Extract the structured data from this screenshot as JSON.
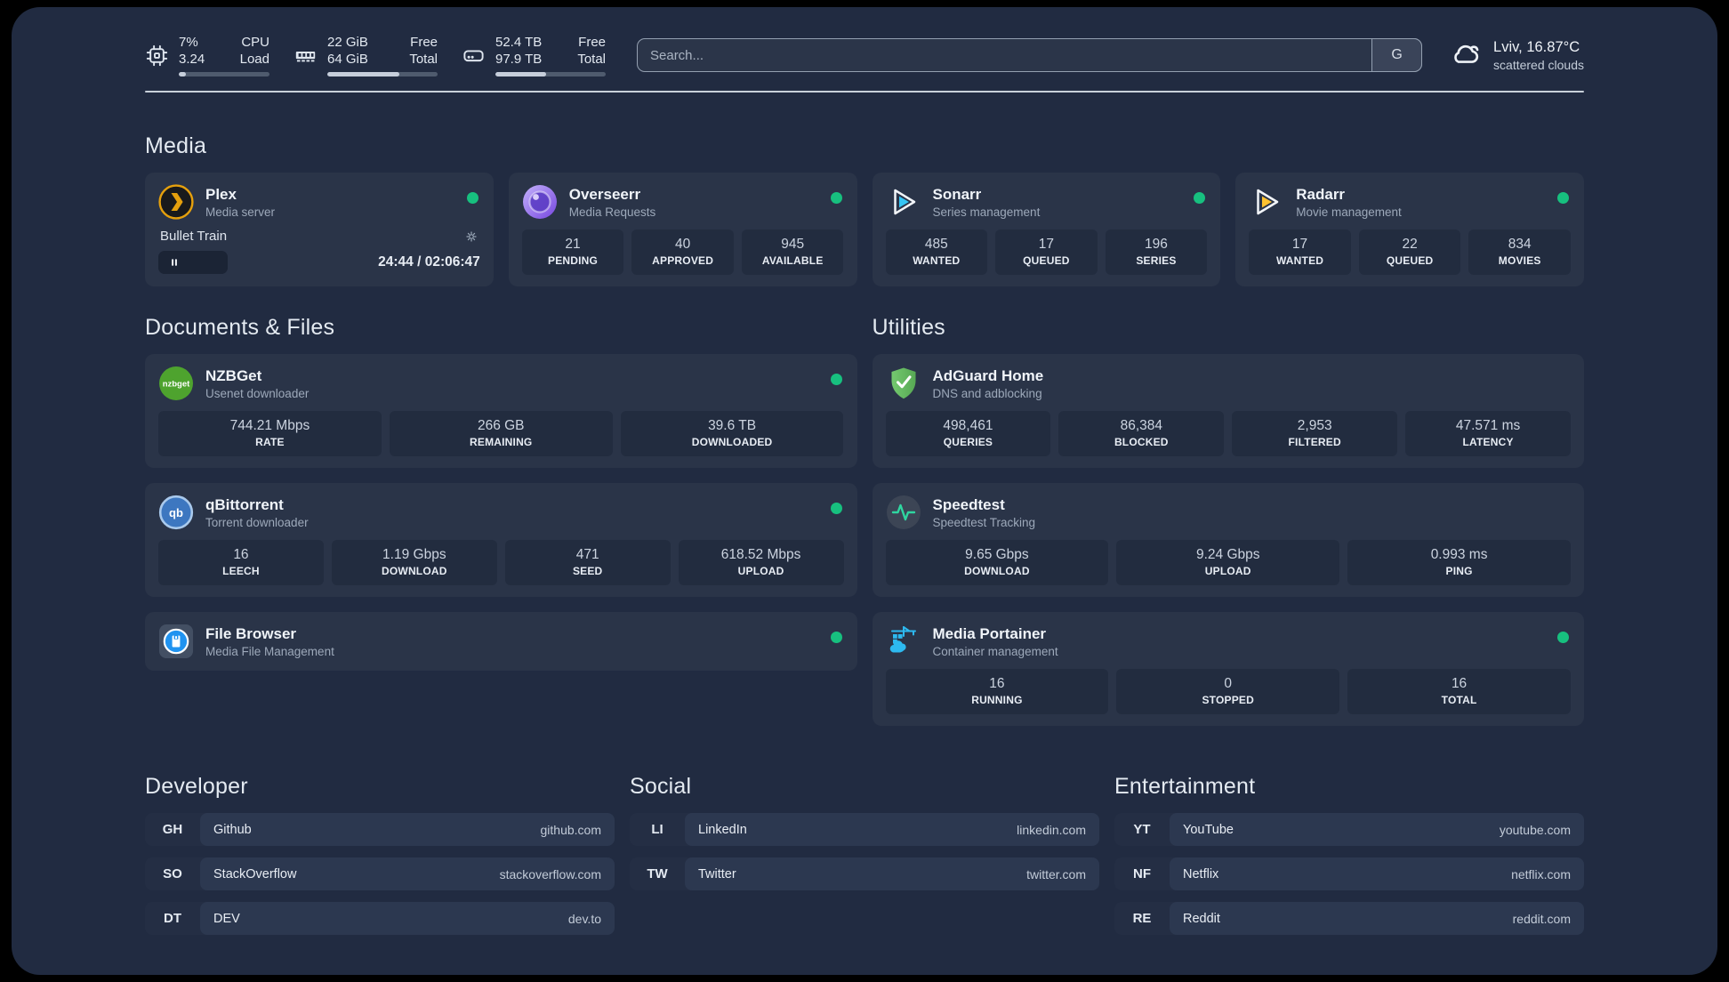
{
  "colors": {
    "page_background": "#212b41",
    "card_background": "#2a3448",
    "stat_background": "#222c3f",
    "status_online_green": "#17c07f",
    "plex_orange": "#e5a00d",
    "overseerr_purple": "#7747e0",
    "sonarr_cyan": "#35c5f4",
    "radarr_yellow": "#ffc230",
    "nzbget_green": "#4ea32e",
    "qbittorrent_blue": "#3d77c0",
    "filebrowser_blue": "#2093f0",
    "adguard_green": "#63b660",
    "speedtest_pulse_green": "#2fd6a0",
    "portainer_blue": "#2db9f0"
  },
  "topbar": {
    "resources": [
      {
        "name": "cpu",
        "icon": "cpu-icon",
        "row1_value": "7%",
        "row1_label": "CPU",
        "row2_value": "3.24",
        "row2_label": "Load",
        "progress_pct": 8
      },
      {
        "name": "memory",
        "icon": "memory-icon",
        "row1_value": "22 GiB",
        "row1_label": "Free",
        "row2_value": "64 GiB",
        "row2_label": "Total",
        "progress_pct": 65
      },
      {
        "name": "disk",
        "icon": "disk-icon",
        "row1_value": "52.4 TB",
        "row1_label": "Free",
        "row2_value": "97.9 TB",
        "row2_label": "Total",
        "progress_pct": 46
      }
    ],
    "search": {
      "placeholder": "Search...",
      "provider_button": "G"
    },
    "weather": {
      "location_temperature": "Lviv, 16.87°C",
      "condition": "scattered clouds"
    }
  },
  "sections": {
    "media": {
      "title": "Media",
      "services": [
        {
          "title": "Plex",
          "subtitle": "Media server",
          "status": "online",
          "now_playing": {
            "title": "Bullet Train",
            "state": "paused",
            "time_display": "24:44 / 02:06:47"
          }
        },
        {
          "title": "Overseerr",
          "subtitle": "Media Requests",
          "status": "online",
          "stats": [
            {
              "value": "21",
              "label": "PENDING"
            },
            {
              "value": "40",
              "label": "APPROVED"
            },
            {
              "value": "945",
              "label": "AVAILABLE"
            }
          ]
        },
        {
          "title": "Sonarr",
          "subtitle": "Series management",
          "status": "online",
          "stats": [
            {
              "value": "485",
              "label": "WANTED"
            },
            {
              "value": "17",
              "label": "QUEUED"
            },
            {
              "value": "196",
              "label": "SERIES"
            }
          ]
        },
        {
          "title": "Radarr",
          "subtitle": "Movie management",
          "status": "online",
          "stats": [
            {
              "value": "17",
              "label": "WANTED"
            },
            {
              "value": "22",
              "label": "QUEUED"
            },
            {
              "value": "834",
              "label": "MOVIES"
            }
          ]
        }
      ]
    },
    "documents": {
      "title": "Documents & Files",
      "services": [
        {
          "title": "NZBGet",
          "subtitle": "Usenet downloader",
          "icon_text": "nzbget",
          "status": "online",
          "stats": [
            {
              "value": "744.21 Mbps",
              "label": "RATE"
            },
            {
              "value": "266 GB",
              "label": "REMAINING"
            },
            {
              "value": "39.6 TB",
              "label": "DOWNLOADED"
            }
          ]
        },
        {
          "title": "qBittorrent",
          "subtitle": "Torrent downloader",
          "icon_text": "qb",
          "status": "online",
          "stats": [
            {
              "value": "16",
              "label": "LEECH"
            },
            {
              "value": "1.19 Gbps",
              "label": "DOWNLOAD"
            },
            {
              "value": "471",
              "label": "SEED"
            },
            {
              "value": "618.52 Mbps",
              "label": "UPLOAD"
            }
          ]
        },
        {
          "title": "File Browser",
          "subtitle": "Media File Management",
          "status": "online"
        }
      ]
    },
    "utilities": {
      "title": "Utilities",
      "services": [
        {
          "title": "AdGuard Home",
          "subtitle": "DNS and adblocking",
          "stats": [
            {
              "value": "498,461",
              "label": "QUERIES"
            },
            {
              "value": "86,384",
              "label": "BLOCKED"
            },
            {
              "value": "2,953",
              "label": "FILTERED"
            },
            {
              "value": "47.571 ms",
              "label": "LATENCY"
            }
          ]
        },
        {
          "title": "Speedtest",
          "subtitle": "Speedtest Tracking",
          "stats": [
            {
              "value": "9.65 Gbps",
              "label": "DOWNLOAD"
            },
            {
              "value": "9.24 Gbps",
              "label": "UPLOAD"
            },
            {
              "value": "0.993 ms",
              "label": "PING"
            }
          ]
        },
        {
          "title": "Media Portainer",
          "subtitle": "Container management",
          "status": "online",
          "stats": [
            {
              "value": "16",
              "label": "RUNNING"
            },
            {
              "value": "0",
              "label": "STOPPED"
            },
            {
              "value": "16",
              "label": "TOTAL"
            }
          ]
        }
      ]
    }
  },
  "bookmarks": [
    {
      "title": "Developer",
      "items": [
        {
          "abbr": "GH",
          "name": "Github",
          "url": "github.com"
        },
        {
          "abbr": "SO",
          "name": "StackOverflow",
          "url": "stackoverflow.com"
        },
        {
          "abbr": "DT",
          "name": "DEV",
          "url": "dev.to"
        }
      ]
    },
    {
      "title": "Social",
      "items": [
        {
          "abbr": "LI",
          "name": "LinkedIn",
          "url": "linkedin.com"
        },
        {
          "abbr": "TW",
          "name": "Twitter",
          "url": "twitter.com"
        }
      ]
    },
    {
      "title": "Entertainment",
      "items": [
        {
          "abbr": "YT",
          "name": "YouTube",
          "url": "youtube.com"
        },
        {
          "abbr": "NF",
          "name": "Netflix",
          "url": "netflix.com"
        },
        {
          "abbr": "RE",
          "name": "Reddit",
          "url": "reddit.com"
        }
      ]
    }
  ]
}
